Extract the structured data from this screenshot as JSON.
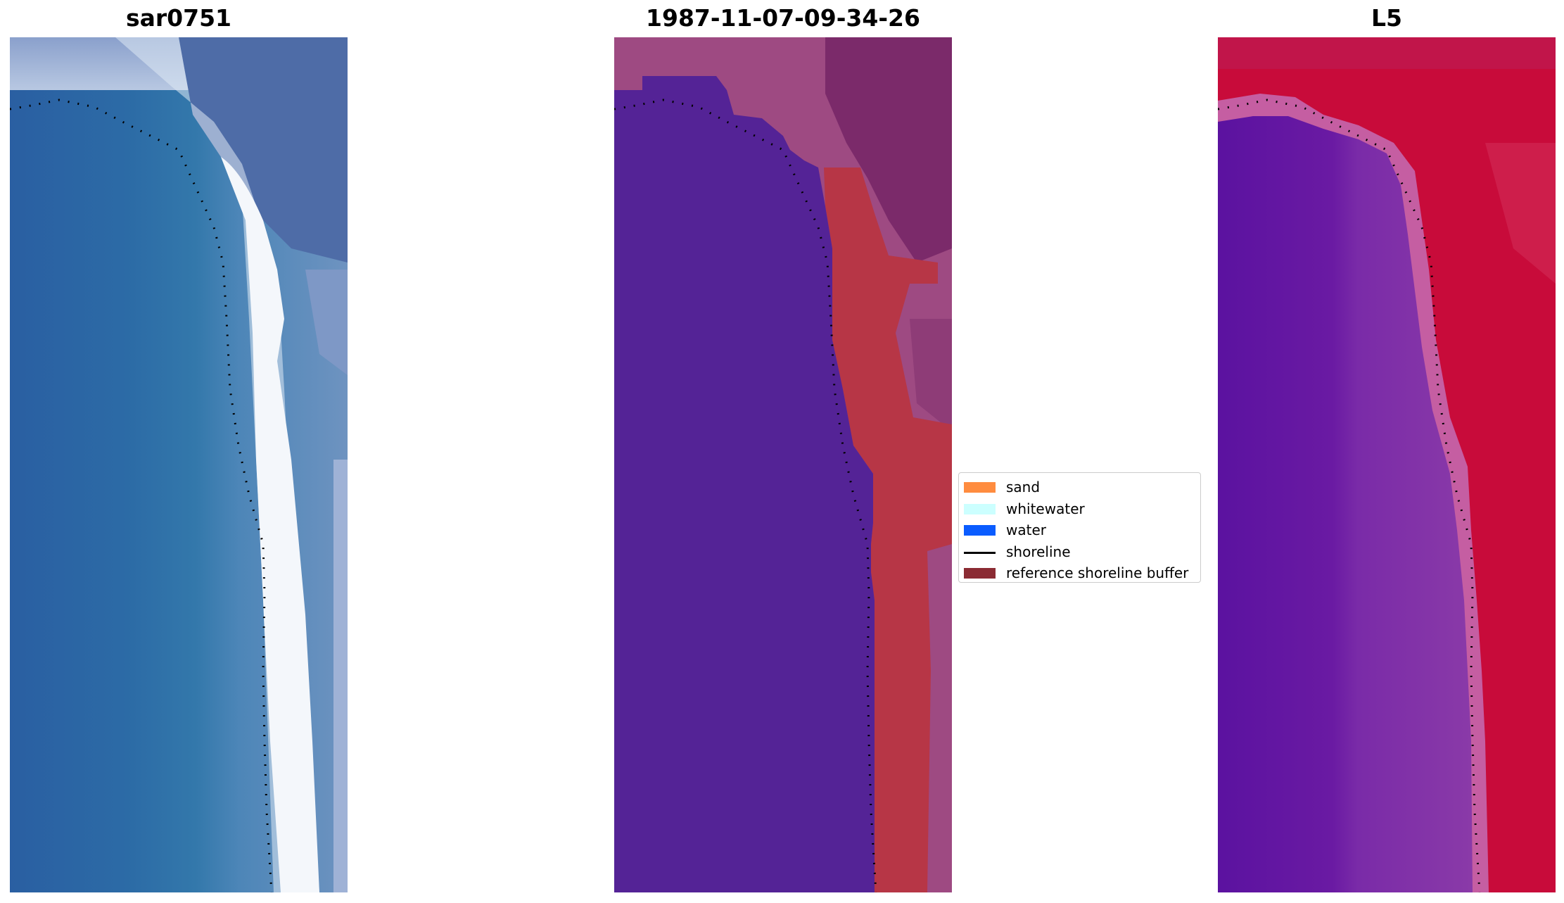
{
  "panels": [
    {
      "title": "sar0751",
      "style": "rgb"
    },
    {
      "title": "1987-11-07-09-34-26",
      "style": "classified"
    },
    {
      "title": "L5",
      "style": "index"
    }
  ],
  "legend": {
    "items": [
      {
        "label": "sand",
        "color": "#ff8c3f",
        "kind": "patch"
      },
      {
        "label": "whitewater",
        "color": "#ccffff",
        "kind": "patch"
      },
      {
        "label": "water",
        "color": "#0a5cff",
        "kind": "patch"
      },
      {
        "label": "shoreline",
        "color": "#000000",
        "kind": "line"
      },
      {
        "label": "reference shoreline buffer",
        "color": "#8b2b33",
        "kind": "patch"
      }
    ]
  },
  "colors": {
    "classified_water": "#542396",
    "classified_buffer": "#b73646",
    "classified_land": "#9e4a82",
    "index_low": "#5a0fa0",
    "index_high": "#c80b3a",
    "rgb_water": "#2a66a3",
    "rgb_surf": "#f3f7fb",
    "rgb_land": "#4f6fa8"
  }
}
